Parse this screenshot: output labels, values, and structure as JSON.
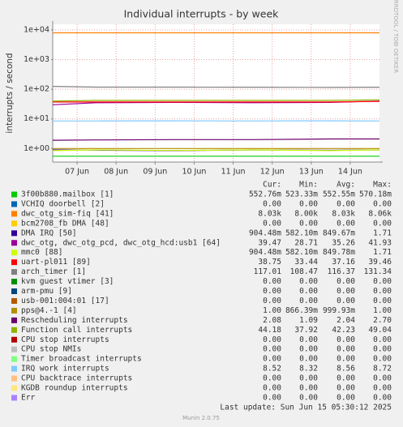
{
  "chart_data": {
    "type": "line",
    "title": "Individual interrupts - by week",
    "y_label": "interrupts / second",
    "watermark": "RRDTOOL / TOBI OETIKER",
    "log_scale": true,
    "grid": true,
    "ylim": [
      0.35,
      15500
    ],
    "yticks": [
      {
        "value": 10000,
        "label": "1e+04"
      },
      {
        "value": 1000,
        "label": "1e+03"
      },
      {
        "value": 100,
        "label": "1e+02"
      },
      {
        "value": 10,
        "label": "1e+01"
      },
      {
        "value": 1,
        "label": "1e+00"
      }
    ],
    "xlim": [
      6.375,
      14.75
    ],
    "xticks": [
      {
        "value": 7,
        "label": "07 Jun"
      },
      {
        "value": 8,
        "label": "08 Jun"
      },
      {
        "value": 9,
        "label": "09 Jun"
      },
      {
        "value": 10,
        "label": "10 Jun"
      },
      {
        "value": 11,
        "label": "11 Jun"
      },
      {
        "value": 12,
        "label": "12 Jun"
      },
      {
        "value": 13,
        "label": "13 Jun"
      },
      {
        "value": 14,
        "label": "14 Jun"
      }
    ],
    "x": [
      6.375,
      7.5,
      9.5,
      11.5,
      13.5,
      14.75
    ],
    "legend_headers": [
      "Cur:",
      "Min:",
      "Avg:",
      "Max:"
    ],
    "series": [
      {
        "name": "3f00b880.mailbox [1]",
        "color": "#00cc00",
        "values": [
          0.55,
          0.55,
          0.55,
          0.55,
          0.55,
          0.55
        ],
        "stats": [
          "552.76m",
          "523.33m",
          "552.55m",
          "570.18m"
        ]
      },
      {
        "name": "VCHIQ doorbell [2]",
        "color": "#0066b3",
        "stats": [
          "0.00",
          "0.00",
          "0.00",
          "0.00"
        ]
      },
      {
        "name": "dwc_otg_sim-fiq [41]",
        "color": "#ff8000",
        "values": [
          8030,
          8030,
          8030,
          8030,
          8030,
          8030
        ],
        "stats": [
          "8.03k",
          "8.00k",
          "8.03k",
          "8.06k"
        ]
      },
      {
        "name": "bcm2708_fb DMA [48]",
        "color": "#ffcc00",
        "stats": [
          "0.00",
          "0.00",
          "0.00",
          "0.00"
        ]
      },
      {
        "name": "DMA IRQ [50]",
        "color": "#330099",
        "values": [
          0.9,
          0.88,
          0.85,
          0.9,
          0.87,
          0.9
        ],
        "stats": [
          "904.48m",
          "582.10m",
          "849.67m",
          "1.71"
        ]
      },
      {
        "name": "dwc_otg, dwc_otg_pcd, dwc_otg_hcd:usb1 [64]",
        "color": "#990099",
        "values": [
          30,
          35,
          36,
          35,
          36,
          40
        ],
        "stats": [
          "39.47",
          "28.71",
          "35.26",
          "41.93"
        ]
      },
      {
        "name": "mmc0 [88]",
        "color": "#ccff00",
        "values": [
          0.85,
          0.9,
          0.86,
          0.9,
          0.85,
          0.9
        ],
        "stats": [
          "904.48m",
          "582.10m",
          "849.78m",
          "1.71"
        ]
      },
      {
        "name": "uart-pl011 [89]",
        "color": "#ff0000",
        "values": [
          37,
          37,
          37,
          37,
          37,
          39
        ],
        "stats": [
          "38.75",
          "33.44",
          "37.16",
          "39.46"
        ]
      },
      {
        "name": "arch_timer [1]",
        "color": "#808080",
        "values": [
          125,
          118,
          118,
          117,
          115,
          117
        ],
        "stats": [
          "117.01",
          "108.47",
          "116.37",
          "131.34"
        ]
      },
      {
        "name": "kvm guest vtimer [3]",
        "color": "#008f00",
        "stats": [
          "0.00",
          "0.00",
          "0.00",
          "0.00"
        ]
      },
      {
        "name": "arm-pmu [9]",
        "color": "#00487d",
        "stats": [
          "0.00",
          "0.00",
          "0.00",
          "0.00"
        ]
      },
      {
        "name": "usb-001:004:01 [17]",
        "color": "#b35a00",
        "stats": [
          "0.00",
          "0.00",
          "0.00",
          "0.00"
        ]
      },
      {
        "name": "pps@4.-1 [4]",
        "color": "#b38f00",
        "values": [
          1,
          1,
          1,
          1,
          1,
          1
        ],
        "stats": [
          "1.00",
          "866.39m",
          "999.93m",
          "1.00"
        ]
      },
      {
        "name": "Rescheduling interrupts",
        "color": "#6b006b",
        "values": [
          1.9,
          1.95,
          2,
          2,
          2.1,
          2.1
        ],
        "stats": [
          "2.08",
          "1.09",
          "2.04",
          "2.70"
        ]
      },
      {
        "name": "Function call interrupts",
        "color": "#8fb300",
        "values": [
          40,
          42,
          42,
          42,
          42,
          44
        ],
        "stats": [
          "44.18",
          "37.92",
          "42.23",
          "49.04"
        ]
      },
      {
        "name": "CPU stop interrupts",
        "color": "#b30000",
        "stats": [
          "0.00",
          "0.00",
          "0.00",
          "0.00"
        ]
      },
      {
        "name": "CPU stop NMIs",
        "color": "#bebebe",
        "stats": [
          "0.00",
          "0.00",
          "0.00",
          "0.00"
        ]
      },
      {
        "name": "Timer broadcast interrupts",
        "color": "#80ff80",
        "stats": [
          "0.00",
          "0.00",
          "0.00",
          "0.00"
        ]
      },
      {
        "name": "IRQ work interrupts",
        "color": "#80c9ff",
        "values": [
          8.5,
          8.5,
          8.6,
          8.5,
          8.6,
          8.5
        ],
        "stats": [
          "8.52",
          "8.32",
          "8.56",
          "8.72"
        ]
      },
      {
        "name": "CPU backtrace interrupts",
        "color": "#ffc080",
        "stats": [
          "0.00",
          "0.00",
          "0.00",
          "0.00"
        ]
      },
      {
        "name": "KGDB roundup interrupts",
        "color": "#ffe680",
        "stats": [
          "0.00",
          "0.00",
          "0.00",
          "0.00"
        ]
      },
      {
        "name": "Err",
        "color": "#aa80ff",
        "stats": [
          "0.00",
          "0.00",
          "0.00",
          "0.00"
        ]
      }
    ],
    "last_update": "Last update: Sun Jun 15 05:30:12 2025",
    "footer": "Munin 2.0.75"
  }
}
